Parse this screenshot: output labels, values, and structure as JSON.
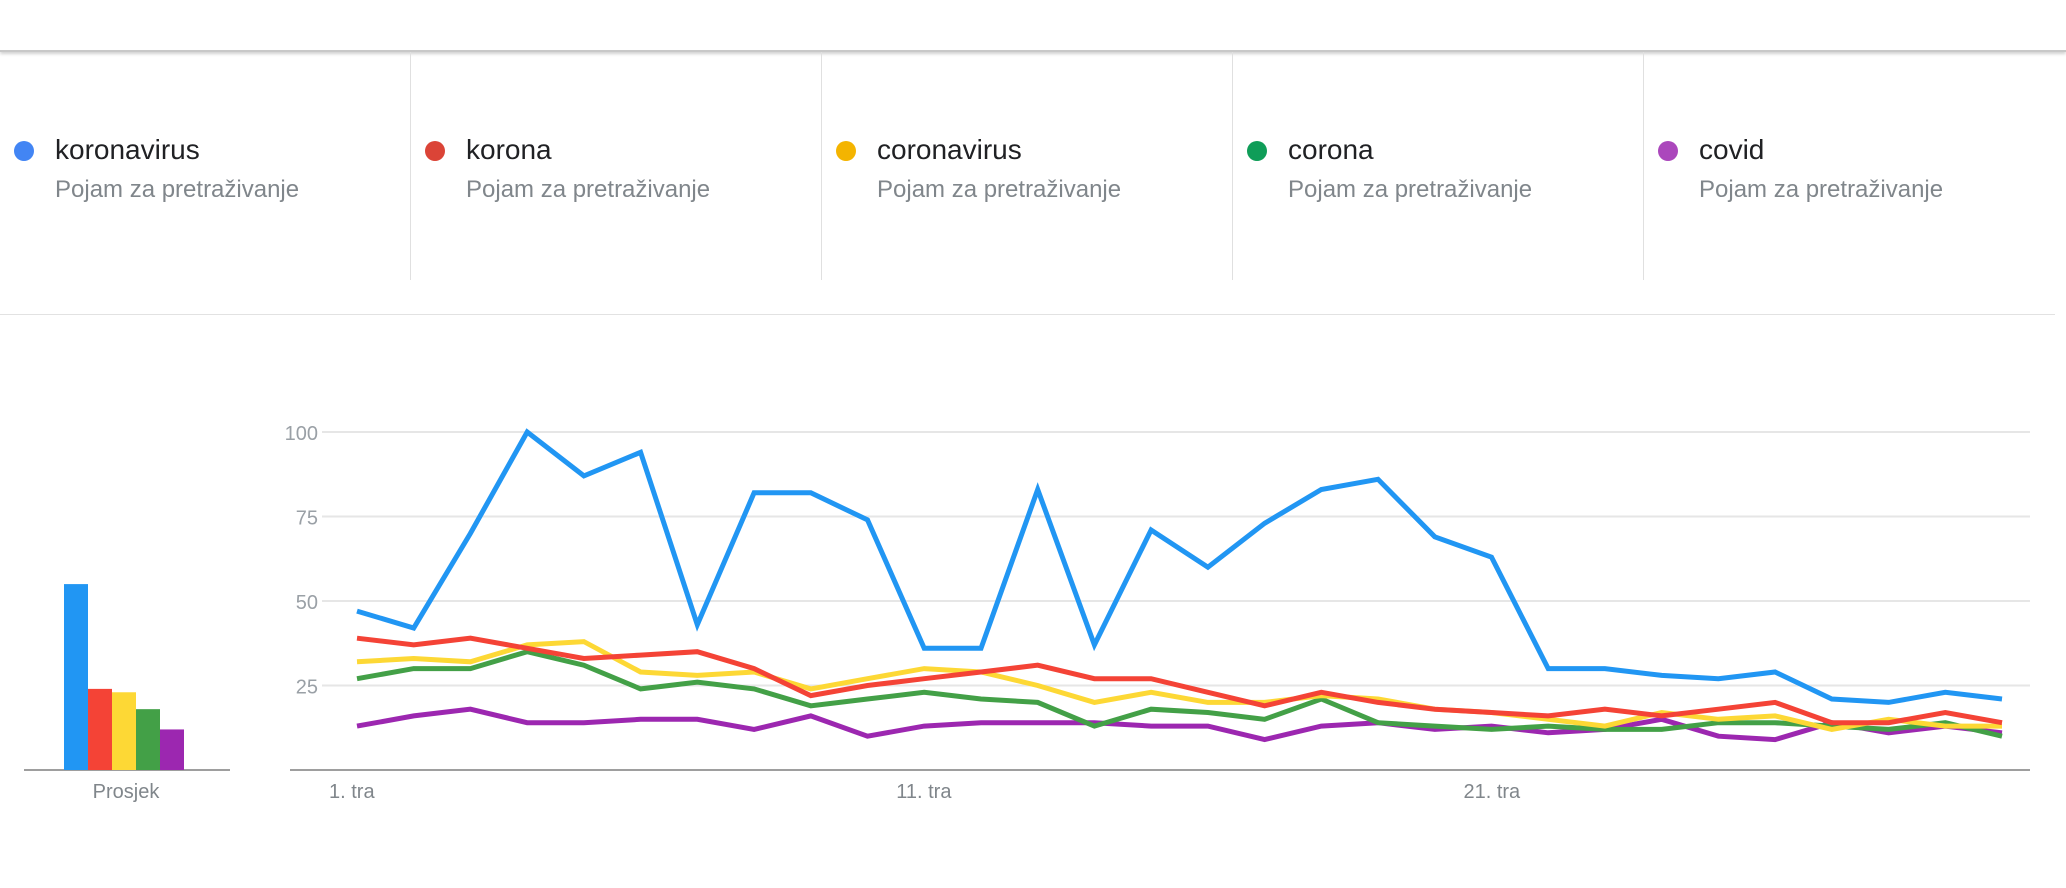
{
  "terms": [
    {
      "name": "koronavirus",
      "subtitle": "Pojam za pretraživanje",
      "color": "#4285f4"
    },
    {
      "name": "korona",
      "subtitle": "Pojam za pretraživanje",
      "color": "#db4437"
    },
    {
      "name": "coronavirus",
      "subtitle": "Pojam za pretraživanje",
      "color": "#f4b400"
    },
    {
      "name": "corona",
      "subtitle": "Pojam za pretraživanje",
      "color": "#0f9d58"
    },
    {
      "name": "covid",
      "subtitle": "Pojam za pretraživanje",
      "color": "#ab47bc"
    }
  ],
  "chart_data": [
    {
      "type": "bar",
      "title": "",
      "xlabel": "Prosjek",
      "categories": [
        "koronavirus",
        "korona",
        "coronavirus",
        "corona",
        "covid"
      ],
      "values": [
        55,
        24,
        23,
        18,
        12
      ],
      "colors": [
        "#2196f3",
        "#f44336",
        "#fdd835",
        "#43a047",
        "#9c27b0"
      ],
      "ylim": [
        0,
        100
      ]
    },
    {
      "type": "line",
      "title": "",
      "xlabel": "",
      "ylabel": "",
      "ylim": [
        0,
        100
      ],
      "yticks": [
        25,
        50,
        75,
        100
      ],
      "grid": true,
      "xtick_labels": [
        {
          "index": 0,
          "label": "1. tra"
        },
        {
          "index": 10,
          "label": "11. tra"
        },
        {
          "index": 20,
          "label": "21. tra"
        }
      ],
      "points_per_series": 30,
      "series": [
        {
          "name": "koronavirus",
          "color": "#2196f3",
          "values": [
            47,
            42,
            70,
            100,
            87,
            94,
            43,
            82,
            82,
            74,
            36,
            36,
            83,
            37,
            71,
            60,
            73,
            83,
            86,
            69,
            63,
            30,
            30,
            28,
            27,
            29,
            21,
            20,
            23,
            21
          ]
        },
        {
          "name": "korona",
          "color": "#f44336",
          "values": [
            39,
            37,
            39,
            36,
            33,
            34,
            35,
            30,
            22,
            25,
            27,
            29,
            31,
            27,
            27,
            23,
            19,
            23,
            20,
            18,
            17,
            16,
            18,
            16,
            18,
            20,
            14,
            14,
            17,
            14
          ]
        },
        {
          "name": "coronavirus",
          "color": "#fdd835",
          "values": [
            32,
            33,
            32,
            37,
            38,
            29,
            28,
            29,
            24,
            27,
            30,
            29,
            25,
            20,
            23,
            20,
            20,
            22,
            21,
            18,
            17,
            15,
            13,
            17,
            15,
            16,
            12,
            15,
            13,
            13
          ]
        },
        {
          "name": "corona",
          "color": "#43a047",
          "values": [
            27,
            30,
            30,
            35,
            31,
            24,
            26,
            24,
            19,
            21,
            23,
            21,
            20,
            13,
            18,
            17,
            15,
            21,
            14,
            13,
            12,
            13,
            12,
            12,
            14,
            14,
            13,
            12,
            14,
            10
          ]
        },
        {
          "name": "covid",
          "color": "#9c27b0",
          "values": [
            13,
            16,
            18,
            14,
            14,
            15,
            15,
            12,
            16,
            10,
            13,
            14,
            14,
            14,
            13,
            13,
            9,
            13,
            14,
            12,
            13,
            11,
            12,
            15,
            10,
            9,
            14,
            11,
            13,
            11
          ]
        }
      ]
    }
  ]
}
